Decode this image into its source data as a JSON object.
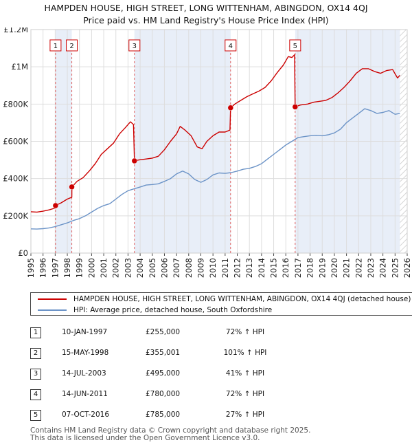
{
  "title_line1": "HAMPDEN HOUSE, HIGH STREET, LONG WITTENHAM, ABINGDON, OX14 4QJ",
  "title_line2": "Price paid vs. HM Land Registry's House Price Index (HPI)",
  "chart_data": {
    "type": "line",
    "ylim": [
      0,
      1200000
    ],
    "xlim": [
      1995,
      2026
    ],
    "y_ticks": [
      {
        "value": 0,
        "label": "£0"
      },
      {
        "value": 200000,
        "label": "£200K"
      },
      {
        "value": 400000,
        "label": "£400K"
      },
      {
        "value": 600000,
        "label": "£600K"
      },
      {
        "value": 800000,
        "label": "£800K"
      },
      {
        "value": 1000000,
        "label": "£1M"
      },
      {
        "value": 1200000,
        "label": "£1.2M"
      }
    ],
    "x_ticks": [
      "1995",
      "1996",
      "1997",
      "1998",
      "1999",
      "2000",
      "2001",
      "2002",
      "2003",
      "2004",
      "2005",
      "2006",
      "2007",
      "2008",
      "2009",
      "2010",
      "2011",
      "2012",
      "2013",
      "2014",
      "2015",
      "2016",
      "2017",
      "2018",
      "2019",
      "2020",
      "2021",
      "2022",
      "2023",
      "2024",
      "2025",
      "2026"
    ],
    "series": [
      {
        "name": "HAMPDEN HOUSE, HIGH STREET, LONG WITTENHAM, ABINGDON, OX14 4QJ (detached house)",
        "color": "#cc0000",
        "points": [
          [
            1995.0,
            222000
          ],
          [
            1995.5,
            220000
          ],
          [
            1996.0,
            225000
          ],
          [
            1996.5,
            232000
          ],
          [
            1997.0,
            242000
          ],
          [
            1997.03,
            255000
          ],
          [
            1997.5,
            270000
          ],
          [
            1998.0,
            290000
          ],
          [
            1998.37,
            300000
          ],
          [
            1998.38,
            355001
          ],
          [
            1998.8,
            385000
          ],
          [
            1999.3,
            405000
          ],
          [
            1999.8,
            440000
          ],
          [
            2000.3,
            480000
          ],
          [
            2000.8,
            530000
          ],
          [
            2001.3,
            560000
          ],
          [
            2001.8,
            590000
          ],
          [
            2002.3,
            640000
          ],
          [
            2002.8,
            675000
          ],
          [
            2003.2,
            705000
          ],
          [
            2003.45,
            690000
          ],
          [
            2003.53,
            495000
          ],
          [
            2003.9,
            500000
          ],
          [
            2004.5,
            505000
          ],
          [
            2005.0,
            510000
          ],
          [
            2005.5,
            520000
          ],
          [
            2006.0,
            555000
          ],
          [
            2006.5,
            600000
          ],
          [
            2007.0,
            640000
          ],
          [
            2007.3,
            680000
          ],
          [
            2007.7,
            660000
          ],
          [
            2008.2,
            630000
          ],
          [
            2008.7,
            570000
          ],
          [
            2009.1,
            560000
          ],
          [
            2009.5,
            600000
          ],
          [
            2010.0,
            630000
          ],
          [
            2010.5,
            650000
          ],
          [
            2011.0,
            650000
          ],
          [
            2011.4,
            660000
          ],
          [
            2011.45,
            780000
          ],
          [
            2011.8,
            800000
          ],
          [
            2012.3,
            820000
          ],
          [
            2012.8,
            840000
          ],
          [
            2013.3,
            855000
          ],
          [
            2013.8,
            870000
          ],
          [
            2014.3,
            890000
          ],
          [
            2014.8,
            925000
          ],
          [
            2015.3,
            970000
          ],
          [
            2015.8,
            1010000
          ],
          [
            2016.2,
            1055000
          ],
          [
            2016.5,
            1050000
          ],
          [
            2016.72,
            1065000
          ],
          [
            2016.77,
            785000
          ],
          [
            2017.2,
            795000
          ],
          [
            2017.8,
            800000
          ],
          [
            2018.3,
            810000
          ],
          [
            2018.8,
            815000
          ],
          [
            2019.3,
            820000
          ],
          [
            2019.8,
            835000
          ],
          [
            2020.3,
            860000
          ],
          [
            2020.8,
            890000
          ],
          [
            2021.3,
            925000
          ],
          [
            2021.8,
            965000
          ],
          [
            2022.3,
            990000
          ],
          [
            2022.8,
            990000
          ],
          [
            2023.3,
            975000
          ],
          [
            2023.8,
            965000
          ],
          [
            2024.3,
            980000
          ],
          [
            2024.8,
            985000
          ],
          [
            2025.2,
            940000
          ],
          [
            2025.4,
            955000
          ]
        ]
      },
      {
        "name": "HPI: Average price, detached house, South Oxfordshire",
        "color": "#6b93c7",
        "points": [
          [
            1995.0,
            130000
          ],
          [
            1995.5,
            129000
          ],
          [
            1996.0,
            131000
          ],
          [
            1996.5,
            135000
          ],
          [
            1997.0,
            142000
          ],
          [
            1997.5,
            152000
          ],
          [
            1998.0,
            162000
          ],
          [
            1998.5,
            175000
          ],
          [
            1999.0,
            185000
          ],
          [
            1999.5,
            200000
          ],
          [
            2000.0,
            220000
          ],
          [
            2000.5,
            240000
          ],
          [
            2001.0,
            255000
          ],
          [
            2001.5,
            265000
          ],
          [
            2002.0,
            290000
          ],
          [
            2002.5,
            315000
          ],
          [
            2003.0,
            335000
          ],
          [
            2003.5,
            345000
          ],
          [
            2004.0,
            355000
          ],
          [
            2004.5,
            365000
          ],
          [
            2005.0,
            368000
          ],
          [
            2005.5,
            372000
          ],
          [
            2006.0,
            385000
          ],
          [
            2006.5,
            400000
          ],
          [
            2007.0,
            425000
          ],
          [
            2007.5,
            440000
          ],
          [
            2008.0,
            425000
          ],
          [
            2008.5,
            395000
          ],
          [
            2009.0,
            380000
          ],
          [
            2009.5,
            395000
          ],
          [
            2010.0,
            420000
          ],
          [
            2010.5,
            430000
          ],
          [
            2011.0,
            428000
          ],
          [
            2011.5,
            432000
          ],
          [
            2012.0,
            440000
          ],
          [
            2012.5,
            450000
          ],
          [
            2013.0,
            455000
          ],
          [
            2013.5,
            465000
          ],
          [
            2014.0,
            480000
          ],
          [
            2014.5,
            505000
          ],
          [
            2015.0,
            530000
          ],
          [
            2015.5,
            555000
          ],
          [
            2016.0,
            580000
          ],
          [
            2016.5,
            600000
          ],
          [
            2017.0,
            620000
          ],
          [
            2017.5,
            625000
          ],
          [
            2018.0,
            630000
          ],
          [
            2018.5,
            632000
          ],
          [
            2019.0,
            630000
          ],
          [
            2019.5,
            635000
          ],
          [
            2020.0,
            645000
          ],
          [
            2020.5,
            665000
          ],
          [
            2021.0,
            700000
          ],
          [
            2021.5,
            725000
          ],
          [
            2022.0,
            750000
          ],
          [
            2022.5,
            775000
          ],
          [
            2023.0,
            765000
          ],
          [
            2023.5,
            750000
          ],
          [
            2024.0,
            755000
          ],
          [
            2024.5,
            765000
          ],
          [
            2025.0,
            745000
          ],
          [
            2025.4,
            750000
          ]
        ]
      }
    ],
    "sales": [
      {
        "n": "1",
        "x": 1997.03,
        "y": 255000
      },
      {
        "n": "2",
        "x": 1998.37,
        "y": 355001
      },
      {
        "n": "3",
        "x": 2003.53,
        "y": 495000
      },
      {
        "n": "4",
        "x": 2011.45,
        "y": 780000
      },
      {
        "n": "5",
        "x": 2016.77,
        "y": 785000
      }
    ]
  },
  "legend": {
    "red_label": "HAMPDEN HOUSE, HIGH STREET, LONG WITTENHAM, ABINGDON, OX14 4QJ (detached house)",
    "blue_label": "HPI: Average price, detached house, South Oxfordshire",
    "red_color": "#cc0000",
    "blue_color": "#6b93c7"
  },
  "transactions": [
    {
      "n": "1",
      "date": "10-JAN-1997",
      "price": "£255,000",
      "hpi": "72% ↑ HPI"
    },
    {
      "n": "2",
      "date": "15-MAY-1998",
      "price": "£355,001",
      "hpi": "101% ↑ HPI"
    },
    {
      "n": "3",
      "date": "14-JUL-2003",
      "price": "£495,000",
      "hpi": "41% ↑ HPI"
    },
    {
      "n": "4",
      "date": "14-JUN-2011",
      "price": "£780,000",
      "hpi": "72% ↑ HPI"
    },
    {
      "n": "5",
      "date": "07-OCT-2016",
      "price": "£785,000",
      "hpi": "27% ↑ HPI"
    }
  ],
  "footer_line1": "Contains HM Land Registry data © Crown copyright and database right 2025.",
  "footer_line2": "This data is licensed under the Open Government Licence v3.0."
}
